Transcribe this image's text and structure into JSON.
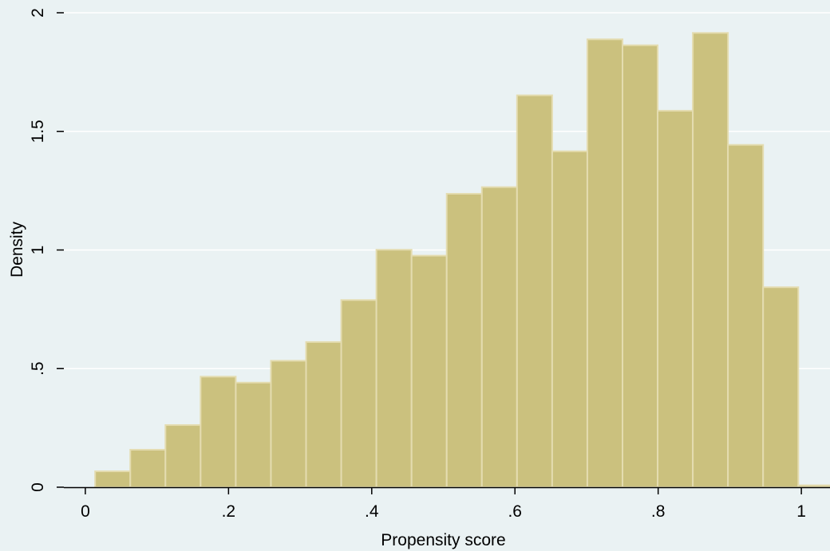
{
  "chart_data": {
    "type": "bar",
    "subtype": "histogram",
    "xlabel": "Propensity score",
    "ylabel": "Density",
    "xlim": [
      -0.03,
      1.04
    ],
    "ylim": [
      0,
      2.0
    ],
    "x_ticks": [
      {
        "value": 0,
        "label": "0"
      },
      {
        "value": 0.2,
        "label": ".2"
      },
      {
        "value": 0.4,
        "label": ".4"
      },
      {
        "value": 0.6,
        "label": ".6"
      },
      {
        "value": 0.8,
        "label": ".8"
      },
      {
        "value": 1.0,
        "label": "1"
      }
    ],
    "y_ticks": [
      {
        "value": 0,
        "label": "0"
      },
      {
        "value": 0.5,
        "label": ".5"
      },
      {
        "value": 1.0,
        "label": "1"
      },
      {
        "value": 1.5,
        "label": "1.5"
      },
      {
        "value": 2.0,
        "label": "2"
      }
    ],
    "bin_width": 0.0491,
    "bins": [
      {
        "x0": 0.0137,
        "value": 0.067
      },
      {
        "x0": 0.0628,
        "value": 0.158
      },
      {
        "x0": 0.1119,
        "value": 0.262
      },
      {
        "x0": 0.161,
        "value": 0.466
      },
      {
        "x0": 0.2101,
        "value": 0.441
      },
      {
        "x0": 0.2592,
        "value": 0.533
      },
      {
        "x0": 0.3083,
        "value": 0.612
      },
      {
        "x0": 0.3574,
        "value": 0.789
      },
      {
        "x0": 0.4065,
        "value": 1.001
      },
      {
        "x0": 0.4556,
        "value": 0.976
      },
      {
        "x0": 0.5047,
        "value": 1.237
      },
      {
        "x0": 0.5538,
        "value": 1.265
      },
      {
        "x0": 0.6029,
        "value": 1.652
      },
      {
        "x0": 0.652,
        "value": 1.416
      },
      {
        "x0": 0.7011,
        "value": 1.888
      },
      {
        "x0": 0.7502,
        "value": 1.863
      },
      {
        "x0": 0.7993,
        "value": 1.587
      },
      {
        "x0": 0.8484,
        "value": 1.915
      },
      {
        "x0": 0.8975,
        "value": 1.443
      },
      {
        "x0": 0.9466,
        "value": 0.843
      },
      {
        "x0": 0.9957,
        "value": 0.008
      }
    ],
    "grid": "horizontal",
    "colors": {
      "background": "#eaf2f3",
      "bar_fill": "#cbc17e",
      "bar_edge": "#e4dcb0",
      "grid": "#ffffff",
      "axis": "#000000"
    }
  }
}
